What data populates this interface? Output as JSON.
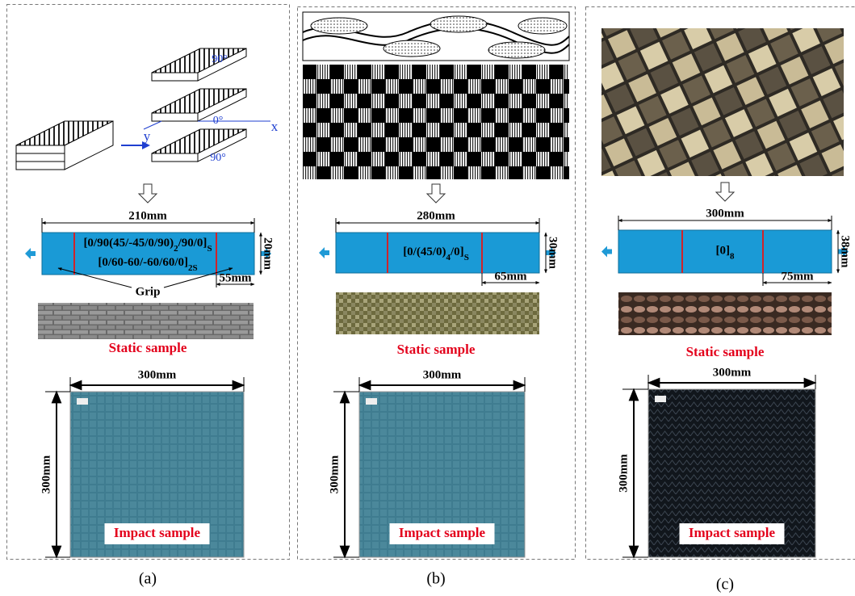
{
  "panels": [
    {
      "caption": "(a)",
      "schematic": {
        "ply_labels": [
          "90°",
          "x",
          "0°",
          "y",
          "90°"
        ]
      },
      "specimen": {
        "length": "210mm",
        "layup": [
          [
            "[0/90(45/-45/0/90)",
            "2",
            "/90/0]",
            "S"
          ],
          [
            "[0/60-60/-60/60/0]",
            "2S"
          ]
        ],
        "width": "20mm",
        "grip_length": "55mm",
        "grip_note": "Grip"
      },
      "static_label": "Static sample",
      "impact": {
        "width": "300mm",
        "height": "300mm",
        "label": "Impact sample"
      }
    },
    {
      "caption": "(b)",
      "specimen": {
        "length": "280mm",
        "layup": [
          [
            "[0/(45/0)",
            "4",
            "/0]",
            "S"
          ]
        ],
        "width": "30mm",
        "grip_length": "65mm"
      },
      "static_label": "Static sample",
      "impact": {
        "width": "300mm",
        "height": "300mm",
        "label": "Impact sample"
      }
    },
    {
      "caption": "(c)",
      "specimen": {
        "length": "300mm",
        "layup": [
          [
            "[0]",
            "8"
          ]
        ],
        "width": "38mm",
        "grip_length": "75mm"
      },
      "static_label": "Static sample",
      "impact": {
        "width": "300mm",
        "height": "300mm",
        "label": "Impact sample"
      }
    }
  ]
}
